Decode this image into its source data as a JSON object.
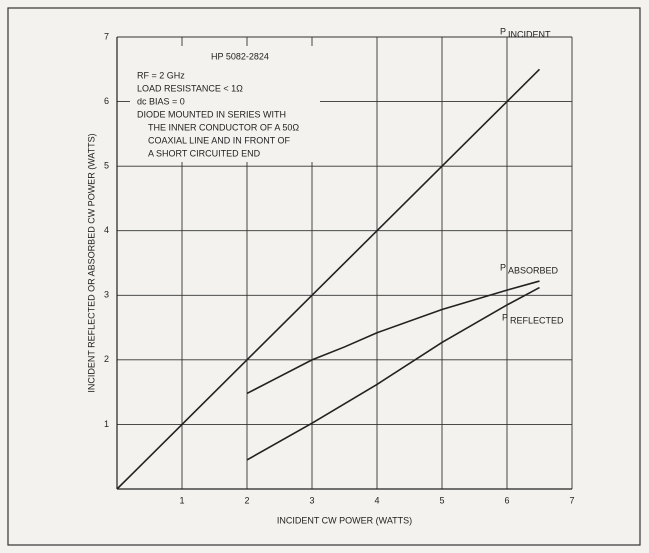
{
  "chart_data": {
    "type": "line",
    "annotation": [
      "HP 5082-2824",
      "RF = 2 GHz",
      "LOAD RESISTANCE < 1Ω",
      "dc BIAS = 0",
      "DIODE MOUNTED IN SERIES WITH",
      "THE INNER CONDUCTOR OF A 50Ω",
      "COAXIAL LINE AND IN FRONT OF",
      "A SHORT CIRCUITED END"
    ],
    "xlabel": "INCIDENT CW POWER (WATTS)",
    "ylabel": "INCIDENT REFLECTED OR ABSORBED CW POWER (WATTS)",
    "xlim": [
      0,
      7
    ],
    "xticks": [
      1,
      2,
      3,
      4,
      5,
      6,
      7
    ],
    "ylim": [
      0,
      7
    ],
    "yticks": [
      1,
      2,
      3,
      4,
      5,
      6,
      7
    ],
    "grid": true,
    "series": [
      {
        "name": "P",
        "subscript": "INCIDENT",
        "color": "#222",
        "x": [
          0,
          6.5
        ],
        "values": [
          0,
          6.5
        ]
      },
      {
        "name": "P",
        "subscript": "ABSORBED",
        "color": "#222",
        "x": [
          2,
          3,
          3.5,
          4,
          5,
          6,
          6.5
        ],
        "values": [
          1.48,
          2.0,
          2.2,
          2.42,
          2.78,
          3.08,
          3.22
        ]
      },
      {
        "name": "P",
        "subscript": "REFLECTED",
        "color": "#222",
        "x": [
          2,
          3,
          4,
          5,
          6,
          6.5
        ],
        "values": [
          0.45,
          1.02,
          1.62,
          2.27,
          2.85,
          3.12
        ]
      }
    ]
  }
}
